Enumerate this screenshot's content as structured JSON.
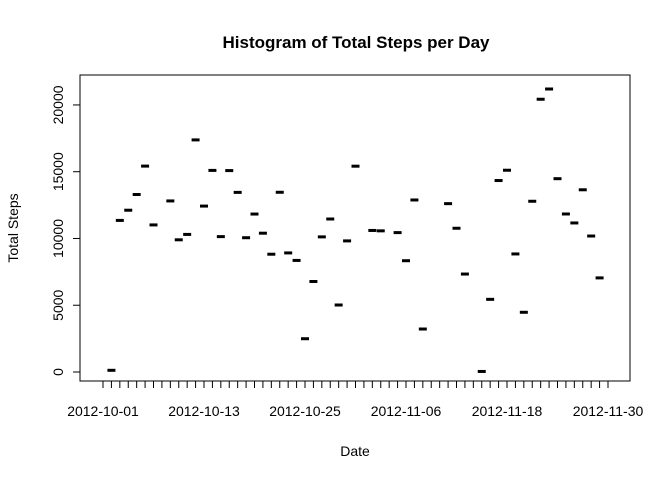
{
  "chart_data": {
    "type": "scatter",
    "title": "Histogram of Total Steps per Day",
    "xlabel": "Date",
    "ylabel": "Total Steps",
    "x_tick_labels": [
      "2012-10-01",
      "2012-10-13",
      "2012-10-25",
      "2012-11-06",
      "2012-11-18",
      "2012-11-30"
    ],
    "y_ticks": [
      0,
      5000,
      10000,
      15000,
      20000
    ],
    "y_tick_labels": [
      "0",
      "5000",
      "10000",
      "15000",
      "20000"
    ],
    "xlim": [
      "2012-10-01",
      "2012-11-30"
    ],
    "ylim": [
      0,
      21194
    ],
    "grid": false,
    "legend": "none",
    "series": [
      {
        "x": [
          "2012-10-02",
          "2012-10-03",
          "2012-10-04",
          "2012-10-05",
          "2012-10-06",
          "2012-10-07",
          "2012-10-09",
          "2012-10-10",
          "2012-10-11",
          "2012-10-12",
          "2012-10-13",
          "2012-10-14",
          "2012-10-15",
          "2012-10-16",
          "2012-10-17",
          "2012-10-18",
          "2012-10-19",
          "2012-10-20",
          "2012-10-21",
          "2012-10-22",
          "2012-10-23",
          "2012-10-24",
          "2012-10-25",
          "2012-10-26",
          "2012-10-27",
          "2012-10-28",
          "2012-10-29",
          "2012-10-30",
          "2012-10-31",
          "2012-11-02",
          "2012-11-03",
          "2012-11-05",
          "2012-11-06",
          "2012-11-07",
          "2012-11-08",
          "2012-11-11",
          "2012-11-12",
          "2012-11-13",
          "2012-11-15",
          "2012-11-16",
          "2012-11-17",
          "2012-11-18",
          "2012-11-19",
          "2012-11-20",
          "2012-11-21",
          "2012-11-22",
          "2012-11-23",
          "2012-11-24",
          "2012-11-25",
          "2012-11-26",
          "2012-11-27",
          "2012-11-28",
          "2012-11-29"
        ],
        "y": [
          126,
          11352,
          12116,
          13294,
          15420,
          11015,
          12811,
          9900,
          10304,
          17382,
          12426,
          15098,
          10139,
          15084,
          13452,
          10056,
          11829,
          10395,
          8821,
          13460,
          8918,
          8355,
          2492,
          6778,
          10119,
          11458,
          5018,
          9819,
          15414,
          10600,
          10571,
          10439,
          8334,
          12883,
          3219,
          12608,
          10765,
          7336,
          41,
          5441,
          14339,
          15110,
          8841,
          4472,
          12787,
          20427,
          21194,
          14478,
          11834,
          11162,
          13646,
          10183,
          7047
        ],
        "color": "#000000"
      }
    ]
  }
}
